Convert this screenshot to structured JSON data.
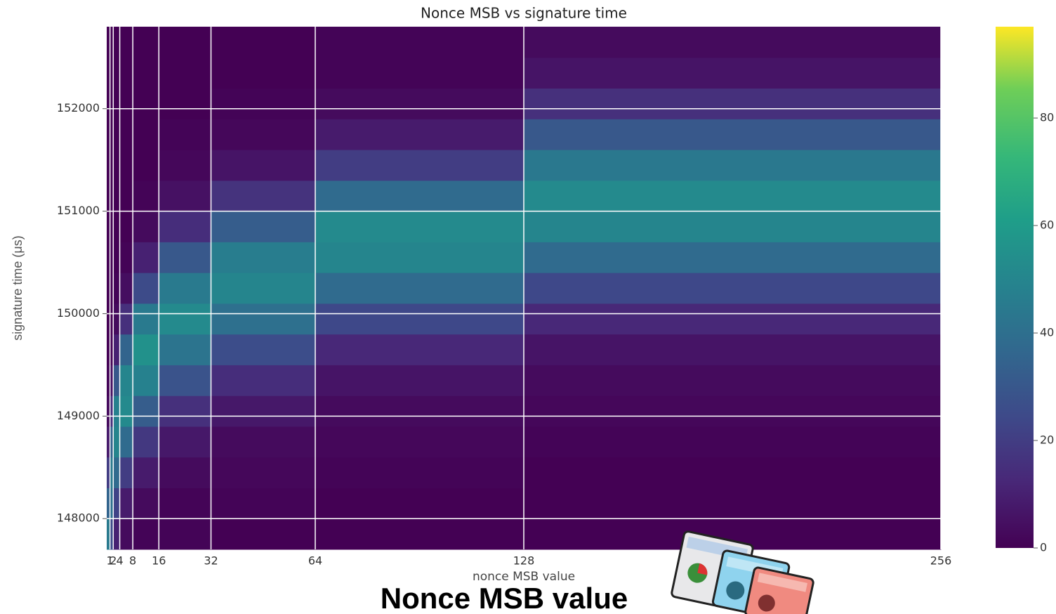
{
  "chart_data": {
    "type": "heatmap",
    "title": "Nonce MSB vs signature time",
    "x_label": "nonce MSB value",
    "y_label": "signature time (μs)",
    "caption": "Nonce MSB value",
    "colormap": "viridis",
    "grid": true,
    "xlim": [
      0,
      256
    ],
    "xticks": [
      1,
      2,
      4,
      8,
      16,
      32,
      64,
      128,
      256
    ],
    "ylim": [
      147700,
      152800
    ],
    "yticks": [
      148000,
      149000,
      150000,
      151000,
      152000
    ],
    "clim": [
      0,
      97
    ],
    "cticks": [
      0,
      20,
      40,
      60,
      80
    ],
    "xbins": [
      0,
      1,
      2,
      4,
      8,
      16,
      32,
      64,
      128,
      256
    ],
    "ybins": [
      147700,
      148000,
      148300,
      148600,
      148900,
      149200,
      149500,
      149800,
      150100,
      150400,
      150700,
      151000,
      151300,
      151600,
      151900,
      152200,
      152500,
      152800
    ],
    "values": [
      [
        45,
        35,
        20,
        8,
        3,
        1,
        0,
        0,
        0,
        0,
        0,
        0,
        0,
        0,
        0,
        0,
        0
      ],
      [
        25,
        40,
        45,
        35,
        15,
        5,
        1,
        0,
        0,
        0,
        0,
        0,
        0,
        0,
        0,
        0,
        0
      ],
      [
        10,
        22,
        38,
        50,
        48,
        30,
        10,
        3,
        1,
        0,
        0,
        0,
        0,
        0,
        0,
        0,
        0
      ],
      [
        3,
        8,
        20,
        38,
        52,
        50,
        35,
        15,
        4,
        1,
        0,
        0,
        0,
        0,
        0,
        0,
        0
      ],
      [
        1,
        3,
        8,
        18,
        32,
        48,
        55,
        45,
        25,
        10,
        3,
        1,
        0,
        0,
        0,
        0,
        0
      ],
      [
        1,
        1,
        3,
        7,
        15,
        28,
        42,
        52,
        45,
        30,
        14,
        5,
        2,
        1,
        0,
        0,
        0
      ],
      [
        0,
        1,
        2,
        3,
        7,
        14,
        26,
        40,
        50,
        46,
        32,
        16,
        6,
        2,
        1,
        0,
        0
      ],
      [
        0,
        0,
        1,
        2,
        3,
        6,
        12,
        24,
        38,
        50,
        52,
        38,
        20,
        8,
        3,
        1,
        1
      ],
      [
        0,
        0,
        0,
        1,
        2,
        3,
        6,
        12,
        24,
        38,
        50,
        52,
        44,
        30,
        15,
        6,
        3
      ]
    ]
  }
}
